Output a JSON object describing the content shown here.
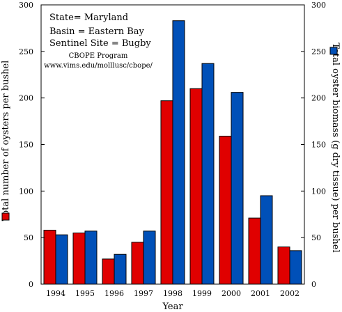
{
  "chart_data": {
    "type": "bar",
    "categories": [
      "1994",
      "1995",
      "1996",
      "1997",
      "1998",
      "1999",
      "2000",
      "2001",
      "2002"
    ],
    "series": [
      {
        "name": "Total number of oysters per bushel",
        "axis": "left",
        "color": "#e00000",
        "values": [
          58,
          55,
          27,
          45,
          197,
          210,
          159,
          71,
          40
        ]
      },
      {
        "name": "Total oyster biomass (g dry tissue) per bushel",
        "axis": "right",
        "color": "#0050b8",
        "values": [
          53,
          57,
          32,
          57,
          283,
          237,
          206,
          95,
          36
        ]
      }
    ],
    "xlabel": "Year",
    "ylabel_left": "Total number of oysters per bushel",
    "ylabel_right": "Total oyster biomass (g dry tissue) per bushel",
    "ylim_left": [
      0,
      300
    ],
    "ylim_right": [
      0,
      300
    ],
    "yticks_left": [
      0,
      50,
      100,
      150,
      200,
      250,
      300
    ],
    "yticks_right": [
      0,
      50,
      100,
      150,
      200,
      250,
      300
    ],
    "annotations": {
      "state": "State= Maryland",
      "basin": "Basin = Eastern Bay",
      "site": "Sentinel Site = Bugby",
      "program": "CBOPE Program",
      "url": "www.vims.edu/molllusc/cbope/"
    },
    "grid": false,
    "legend": "colored squares beside each y-axis label"
  }
}
